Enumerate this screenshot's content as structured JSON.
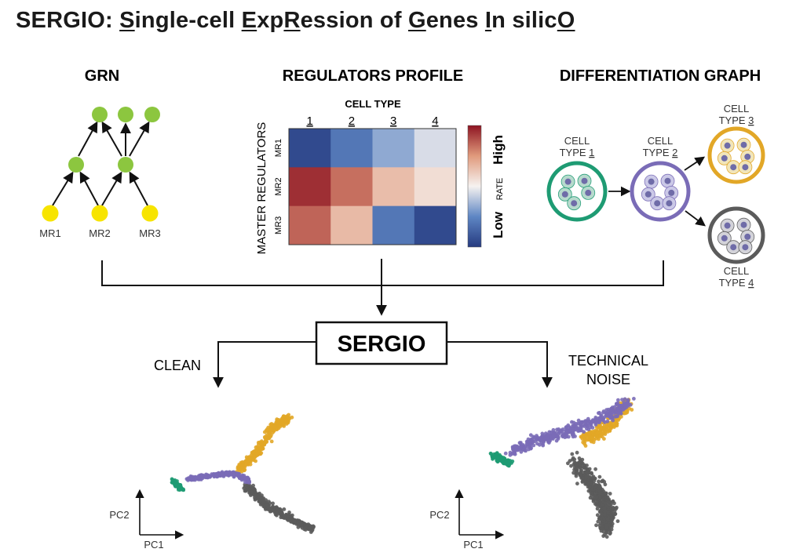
{
  "title": {
    "parts": [
      {
        "text": "SERGIO: ",
        "u": false
      },
      {
        "text": "S",
        "u": true
      },
      {
        "text": "ingle-cell ",
        "u": false
      },
      {
        "text": "E",
        "u": true
      },
      {
        "text": "xp",
        "u": false
      },
      {
        "text": "R",
        "u": true
      },
      {
        "text": "ession of ",
        "u": false
      },
      {
        "text": "G",
        "u": true
      },
      {
        "text": "enes ",
        "u": false
      },
      {
        "text": "I",
        "u": true
      },
      {
        "text": "n silic",
        "u": false
      },
      {
        "text": "O",
        "u": true
      }
    ]
  },
  "grn": {
    "heading": "GRN",
    "master_regulators": [
      "MR1",
      "MR2",
      "MR3"
    ],
    "colors": {
      "master": "#f7e400",
      "target": "#8cc63f"
    }
  },
  "regulators_profile": {
    "heading": "REGULATORS PROFILE",
    "col_title": "CELL TYPE",
    "cols": [
      "1",
      "2",
      "3",
      "4"
    ],
    "row_title": "MASTER REGULATORS",
    "rows": [
      "MR1",
      "MR2",
      "MR3"
    ],
    "values": [
      [
        0.05,
        0.2,
        0.33,
        0.45
      ],
      [
        0.95,
        0.83,
        0.65,
        0.56
      ],
      [
        0.85,
        0.66,
        0.2,
        0.05
      ]
    ],
    "legend": {
      "high": "High",
      "low": "Low",
      "label": "RATE"
    }
  },
  "differentiation_graph": {
    "heading": "DIFFERENTIATION GRAPH",
    "cells": [
      {
        "label1": "CELL",
        "label2": "TYPE ",
        "num": "1",
        "color": "#1e9b73",
        "fill": "#b4d9cb"
      },
      {
        "label1": "CELL",
        "label2": "TYPE ",
        "num": "2",
        "color": "#7a6cb7",
        "fill": "#c9c7e6"
      },
      {
        "label1": "CELL",
        "label2": "TYPE ",
        "num": "3",
        "color": "#e2a727",
        "fill": "#f1e4b7"
      },
      {
        "label1": "CELL",
        "label2": "TYPE ",
        "num": "4",
        "color": "#5b5b5b",
        "fill": "#d1d1d8"
      }
    ]
  },
  "sergio_box": "SERGIO",
  "outputs": {
    "clean": {
      "label": "CLEAN"
    },
    "noise": {
      "label1": "TECHNICAL",
      "label2": "NOISE"
    },
    "axes": {
      "x": "PC1",
      "y": "PC2"
    }
  }
}
